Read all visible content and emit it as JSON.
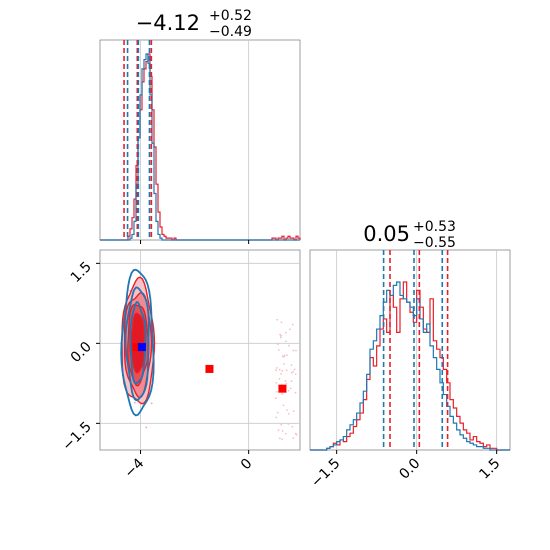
{
  "colors": {
    "series_a": "#e8202a",
    "series_b": "#1f77b4",
    "marker_truth": "#0000ff",
    "marker_other": "#ff0000",
    "grid": "#c8c8c8"
  },
  "chart_data": [
    {
      "type": "histogram",
      "panel": "marginal-param-1",
      "title_main": "−4.12",
      "title_sup": "+0.52",
      "title_sub": "−0.49",
      "xlim": [
        -5.5,
        1.9
      ],
      "grid": true,
      "series": [
        {
          "color": "#e8202a",
          "bin_edges_range": [
            -5.5,
            1.9
          ],
          "counts": [
            0,
            0,
            0,
            0,
            0,
            0,
            0,
            0,
            0,
            0,
            0,
            0,
            0,
            0,
            0.02,
            0.06,
            0.12,
            0.22,
            0.4,
            0.55,
            0.7,
            0.85,
            0.92,
            0.96,
            1.0,
            0.88,
            0.7,
            0.5,
            0.3,
            0.15,
            0.07,
            0.03,
            0.02,
            0.01,
            0.01,
            0.01,
            0,
            0.01,
            0,
            0,
            0,
            0,
            0,
            0,
            0,
            0,
            0,
            0,
            0,
            0,
            0,
            0,
            0,
            0,
            0,
            0,
            0,
            0,
            0,
            0,
            0,
            0,
            0,
            0,
            0,
            0,
            0,
            0,
            0,
            0,
            0,
            0,
            0,
            0,
            0,
            0,
            0,
            0,
            0,
            0,
            0,
            0,
            0,
            0,
            0,
            0,
            0.01,
            0.01,
            0,
            0.01,
            0.01,
            0.02,
            0,
            0.01,
            0.02,
            0.01,
            0.01,
            0,
            0.02,
            0.01
          ],
          "quantile_lines": [
            -4.61,
            -4.12,
            -3.6
          ]
        },
        {
          "color": "#1f77b4",
          "bin_edges_range": [
            -5.5,
            1.9
          ],
          "counts": [
            0,
            0,
            0,
            0,
            0,
            0,
            0,
            0,
            0,
            0,
            0,
            0,
            0,
            0,
            0,
            0.01,
            0.03,
            0.1,
            0.3,
            0.55,
            0.78,
            0.92,
            0.97,
            1.0,
            0.95,
            0.78,
            0.52,
            0.25,
            0.1,
            0.03,
            0.01,
            0,
            0,
            0,
            0,
            0,
            0,
            0,
            0,
            0,
            0,
            0,
            0,
            0,
            0,
            0,
            0,
            0,
            0,
            0,
            0,
            0,
            0,
            0,
            0,
            0,
            0,
            0,
            0,
            0,
            0,
            0,
            0,
            0,
            0,
            0,
            0,
            0,
            0,
            0,
            0,
            0,
            0,
            0,
            0,
            0,
            0,
            0,
            0,
            0,
            0,
            0,
            0,
            0,
            0,
            0,
            0,
            0,
            0,
            0,
            0,
            0,
            0,
            0,
            0,
            0,
            0,
            0,
            0,
            0
          ],
          "quantile_lines": [
            -4.48,
            -4.08,
            -3.67
          ]
        }
      ]
    },
    {
      "type": "scatter-contour",
      "panel": "joint-param-1-param-2",
      "xlim": [
        -5.5,
        1.9
      ],
      "ylim": [
        -2.0,
        1.75
      ],
      "x_ticks": [
        -4,
        0
      ],
      "x_tick_labels": [
        "−4",
        "0"
      ],
      "y_ticks": [
        1.5,
        0.0,
        -1.5
      ],
      "y_tick_labels": [
        "1.5",
        "0.0",
        "−1.5"
      ],
      "grid": true,
      "series": [
        {
          "color": "#e8202a",
          "center": [
            -4.1,
            0.0
          ],
          "contour_sigmas": [
            [
              0.6,
              1.15
            ],
            [
              0.5,
              0.95
            ],
            [
              0.38,
              0.75
            ],
            [
              0.27,
              0.55
            ]
          ],
          "filled": true
        },
        {
          "color": "#1f77b4",
          "center": [
            -4.1,
            0.0
          ],
          "contour_sigmas": [
            [
              0.58,
              1.35
            ],
            [
              0.42,
              1.05
            ],
            [
              0.28,
              0.75
            ]
          ],
          "filled": false
        }
      ],
      "markers": [
        {
          "x": -4.15,
          "y": -0.07,
          "color": "#ff0000"
        },
        {
          "x": -3.95,
          "y": -0.07,
          "color": "#0000ff"
        },
        {
          "x": -1.45,
          "y": -0.48,
          "color": "#ff0000"
        },
        {
          "x": 1.25,
          "y": -0.85,
          "color": "#ff0000"
        }
      ],
      "outlier_cloud": {
        "x_range": [
          1.0,
          1.8
        ],
        "y_range": [
          -1.8,
          0.5
        ],
        "color": "#f3c0c8"
      }
    },
    {
      "type": "histogram",
      "panel": "marginal-param-2",
      "title_main": "0.05",
      "title_sup": "+0.53",
      "title_sub": "−0.55",
      "xlim": [
        -2.0,
        1.75
      ],
      "x_ticks": [
        -1.5,
        0.0,
        1.5
      ],
      "x_tick_labels": [
        "−1.5",
        "0.0",
        "1.5"
      ],
      "grid": true,
      "series": [
        {
          "color": "#e8202a",
          "bin_edges_range": [
            -2.0,
            1.75
          ],
          "counts": [
            0,
            0,
            0,
            0,
            0,
            0.01,
            0.02,
            0.04,
            0.03,
            0.06,
            0.05,
            0.08,
            0.1,
            0.14,
            0.18,
            0.22,
            0.3,
            0.42,
            0.55,
            0.5,
            0.62,
            0.72,
            0.78,
            0.7,
            0.92,
            0.85,
            0.7,
            0.9,
            1.0,
            0.88,
            0.82,
            0.76,
            0.95,
            0.85,
            0.72,
            0.7,
            0.9,
            0.65,
            0.6,
            0.55,
            0.48,
            0.4,
            0.3,
            0.25,
            0.2,
            0.16,
            0.12,
            0.1,
            0.06,
            0.08,
            0.05,
            0.04,
            0.02,
            0.03,
            0.01,
            0.01,
            0,
            0,
            0,
            0
          ],
          "quantile_lines": [
            -0.5,
            0.05,
            0.58
          ]
        },
        {
          "color": "#1f77b4",
          "bin_edges_range": [
            -2.0,
            1.75
          ],
          "counts": [
            0,
            0,
            0,
            0,
            0,
            0.01,
            0.02,
            0.03,
            0.05,
            0.06,
            0.08,
            0.12,
            0.15,
            0.18,
            0.22,
            0.28,
            0.35,
            0.45,
            0.6,
            0.65,
            0.72,
            0.8,
            0.88,
            0.95,
            0.92,
            0.98,
            1.0,
            0.92,
            0.9,
            0.88,
            0.85,
            0.8,
            0.9,
            0.78,
            0.7,
            0.75,
            0.62,
            0.55,
            0.48,
            0.4,
            0.33,
            0.26,
            0.2,
            0.16,
            0.12,
            0.09,
            0.07,
            0.05,
            0.04,
            0.03,
            0.02,
            0.02,
            0.01,
            0.01,
            0,
            0,
            0,
            0,
            0,
            0
          ],
          "quantile_lines": [
            -0.62,
            -0.05,
            0.48
          ]
        }
      ]
    }
  ]
}
